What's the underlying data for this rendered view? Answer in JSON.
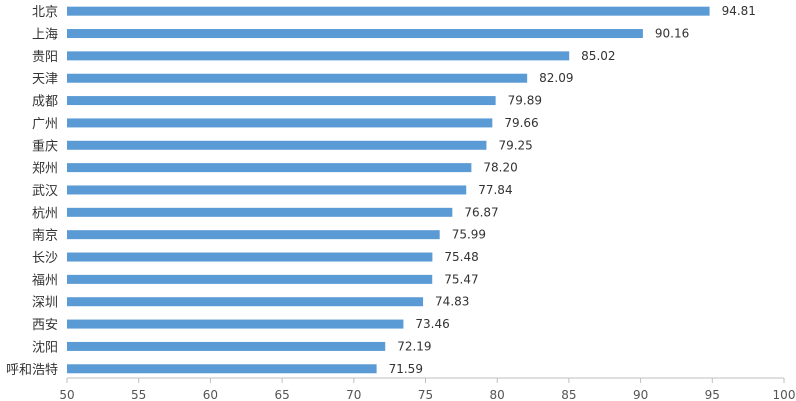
{
  "chart_data": {
    "type": "bar",
    "orientation": "horizontal",
    "categories": [
      "北京",
      "上海",
      "贵阳",
      "天津",
      "成都",
      "广州",
      "重庆",
      "郑州",
      "武汉",
      "杭州",
      "南京",
      "长沙",
      "福州",
      "深圳",
      "西安",
      "沈阳",
      "呼和浩特"
    ],
    "values": [
      94.81,
      90.16,
      85.02,
      82.09,
      79.89,
      79.66,
      79.25,
      78.2,
      77.84,
      76.87,
      75.99,
      75.48,
      75.47,
      74.83,
      73.46,
      72.19,
      71.59
    ],
    "value_labels": [
      "94.81",
      "90.16",
      "85.02",
      "82.09",
      "79.89",
      "79.66",
      "79.25",
      "78.20",
      "77.84",
      "76.87",
      "75.99",
      "75.48",
      "75.47",
      "74.83",
      "73.46",
      "72.19",
      "71.59"
    ],
    "xlim": [
      50,
      100
    ],
    "x_ticks": [
      "50",
      "55",
      "60",
      "65",
      "70",
      "75",
      "80",
      "85",
      "90",
      "95",
      "100"
    ],
    "title": "",
    "xlabel": "",
    "ylabel": "",
    "grid": false,
    "legend": "none",
    "bar_color": "#5b9bd5"
  }
}
